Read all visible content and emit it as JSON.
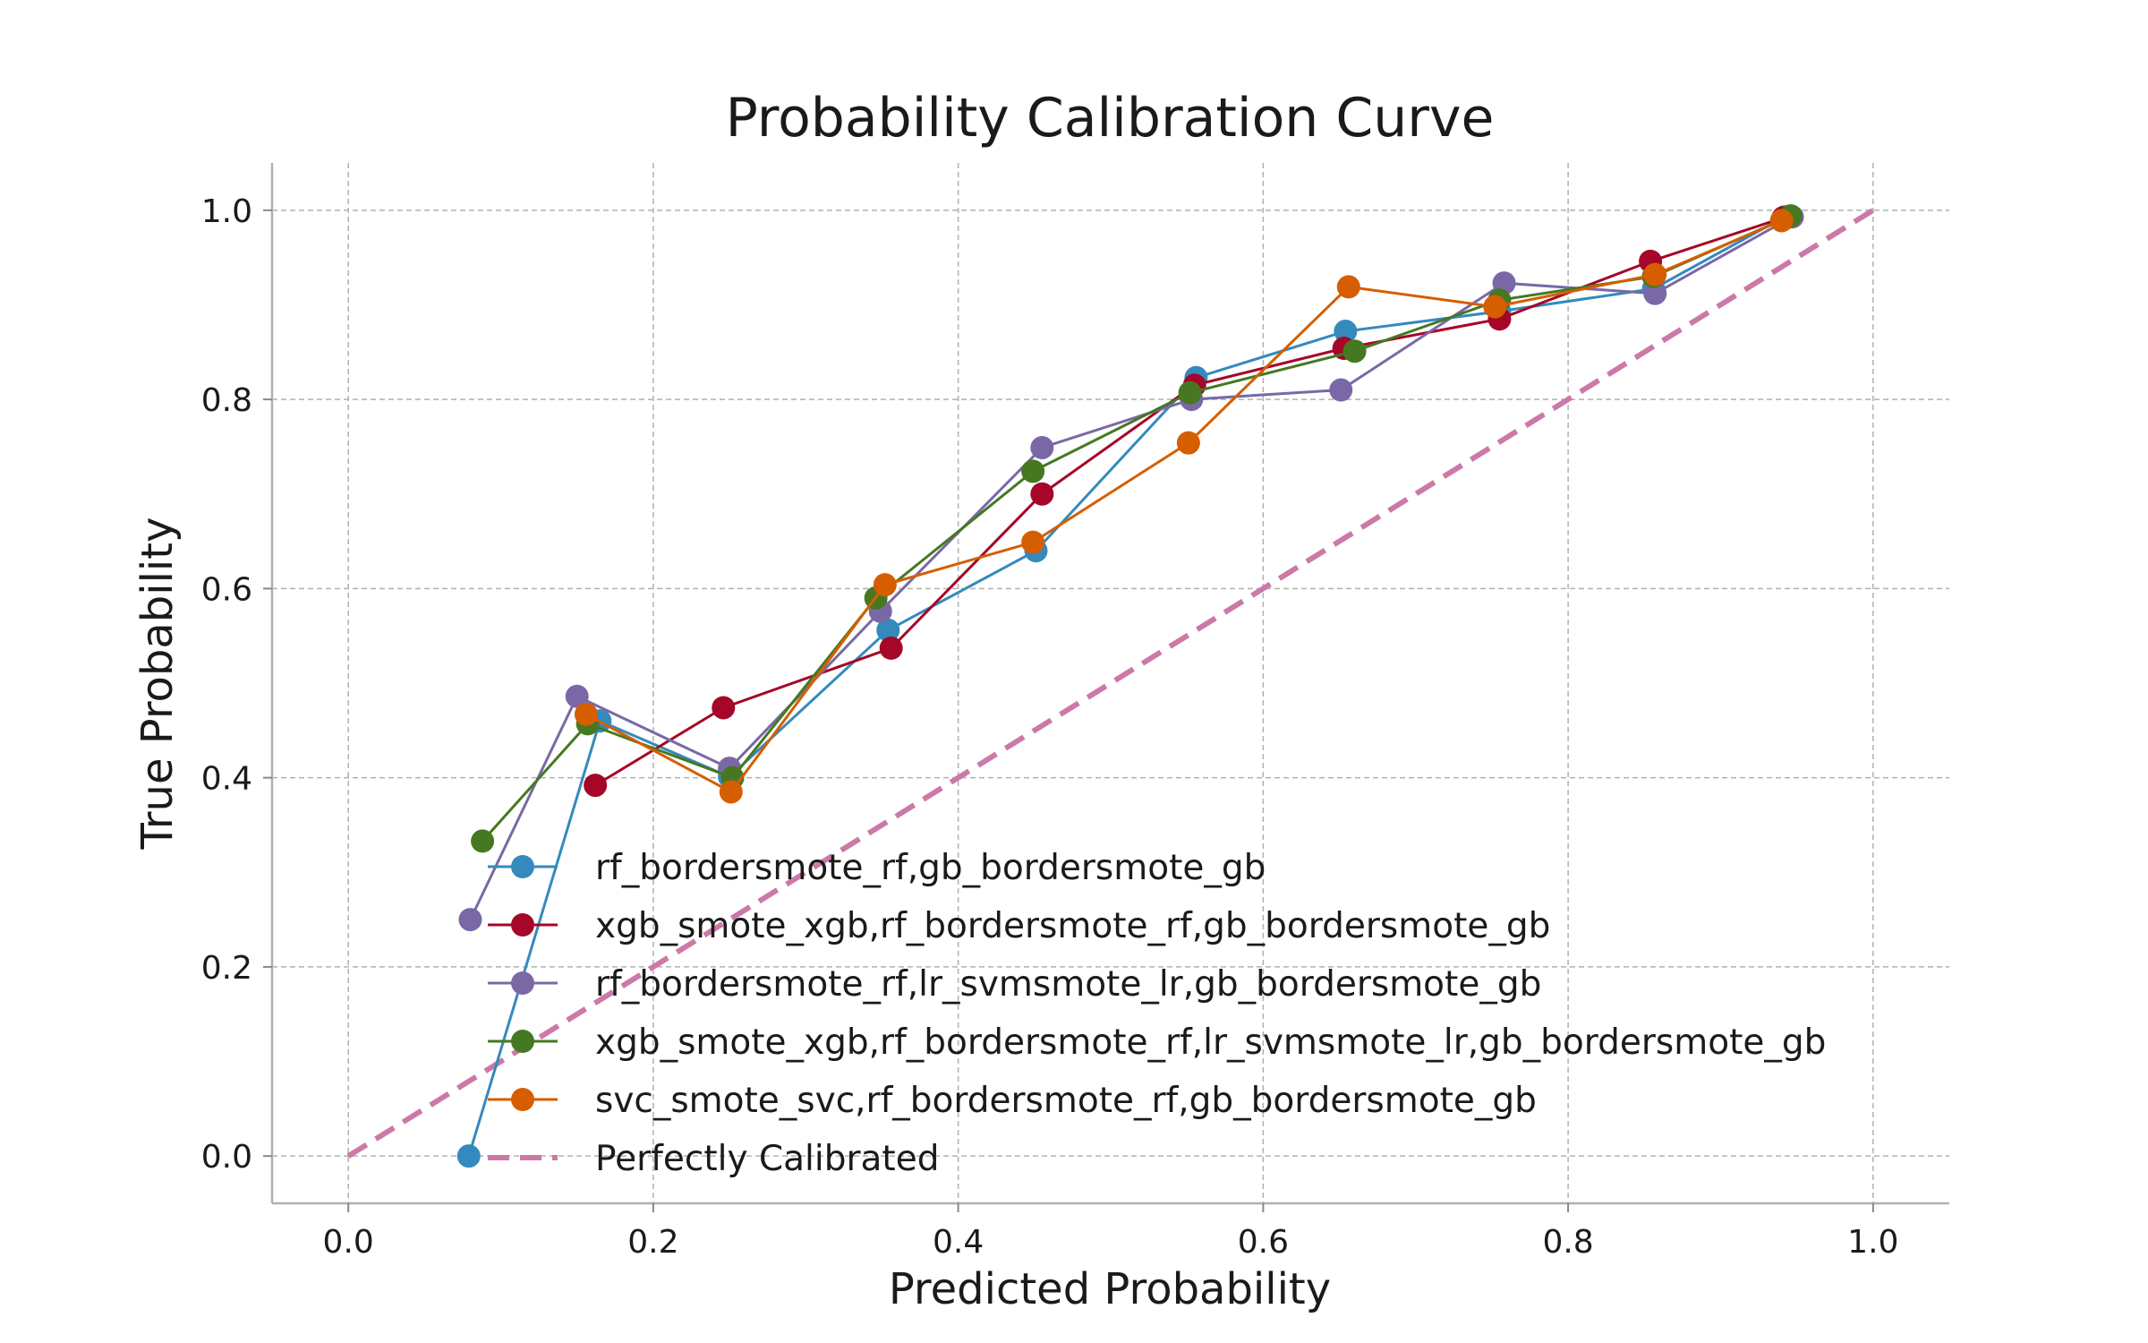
{
  "chart_data": {
    "type": "line",
    "title": "Probability Calibration Curve",
    "xlabel": "Predicted Probability",
    "ylabel": "True Probability",
    "xlim": [
      -0.05,
      1.05
    ],
    "ylim": [
      -0.05,
      1.05
    ],
    "xticks": [
      0.0,
      0.2,
      0.4,
      0.6,
      0.8,
      1.0
    ],
    "yticks": [
      0.0,
      0.2,
      0.4,
      0.6,
      0.8,
      1.0
    ],
    "xtick_labels": [
      "0.0",
      "0.2",
      "0.4",
      "0.6",
      "0.8",
      "1.0"
    ],
    "ytick_labels": [
      "0.0",
      "0.2",
      "0.4",
      "0.6",
      "0.8",
      "1.0"
    ],
    "grid": true,
    "legend_position": "lower-left",
    "series": [
      {
        "name": "rf_bordersmote_rf,gb_bordersmote_gb",
        "color": "#348ABD",
        "marker": "circle",
        "x": [
          0.079,
          0.165,
          0.25,
          0.354,
          0.451,
          0.556,
          0.654,
          0.755,
          0.856,
          0.942
        ],
        "y": [
          0.0,
          0.46,
          0.401,
          0.556,
          0.64,
          0.823,
          0.872,
          0.893,
          0.917,
          0.993
        ]
      },
      {
        "name": "xgb_smote_xgb,rf_bordersmote_rf,gb_bordersmote_gb",
        "color": "#A60628",
        "marker": "circle",
        "x": [
          0.162,
          0.246,
          0.356,
          0.455,
          0.555,
          0.653,
          0.755,
          0.854,
          0.941
        ],
        "y": [
          0.392,
          0.474,
          0.537,
          0.7,
          0.815,
          0.854,
          0.885,
          0.946,
          0.992
        ]
      },
      {
        "name": "rf_bordersmote_rf,lr_svmsmote_lr,gb_bordersmote_gb",
        "color": "#7A68A6",
        "marker": "circle",
        "x": [
          0.08,
          0.15,
          0.25,
          0.349,
          0.455,
          0.553,
          0.651,
          0.758,
          0.857,
          0.947
        ],
        "y": [
          0.25,
          0.486,
          0.41,
          0.576,
          0.749,
          0.8,
          0.81,
          0.923,
          0.912,
          0.993
        ]
      },
      {
        "name": "xgb_smote_xgb,rf_bordersmote_rf,lr_svmsmote_lr,gb_bordersmote_gb",
        "color": "#467821",
        "marker": "circle",
        "x": [
          0.088,
          0.157,
          0.252,
          0.346,
          0.449,
          0.552,
          0.66,
          0.755,
          0.856,
          0.946
        ],
        "y": [
          0.333,
          0.457,
          0.4,
          0.59,
          0.724,
          0.807,
          0.851,
          0.905,
          0.93,
          0.994
        ]
      },
      {
        "name": "svc_smote_svc,rf_bordersmote_rf,gb_bordersmote_gb",
        "color": "#D55E00",
        "marker": "circle",
        "x": [
          0.156,
          0.251,
          0.352,
          0.449,
          0.551,
          0.656,
          0.752,
          0.857,
          0.94
        ],
        "y": [
          0.467,
          0.385,
          0.604,
          0.649,
          0.754,
          0.919,
          0.898,
          0.932,
          0.989
        ]
      },
      {
        "name": "Perfectly Calibrated",
        "color": "#CC79A7",
        "style": "dashed",
        "x": [
          0.0,
          1.0
        ],
        "y": [
          0.0,
          1.0
        ]
      }
    ]
  }
}
